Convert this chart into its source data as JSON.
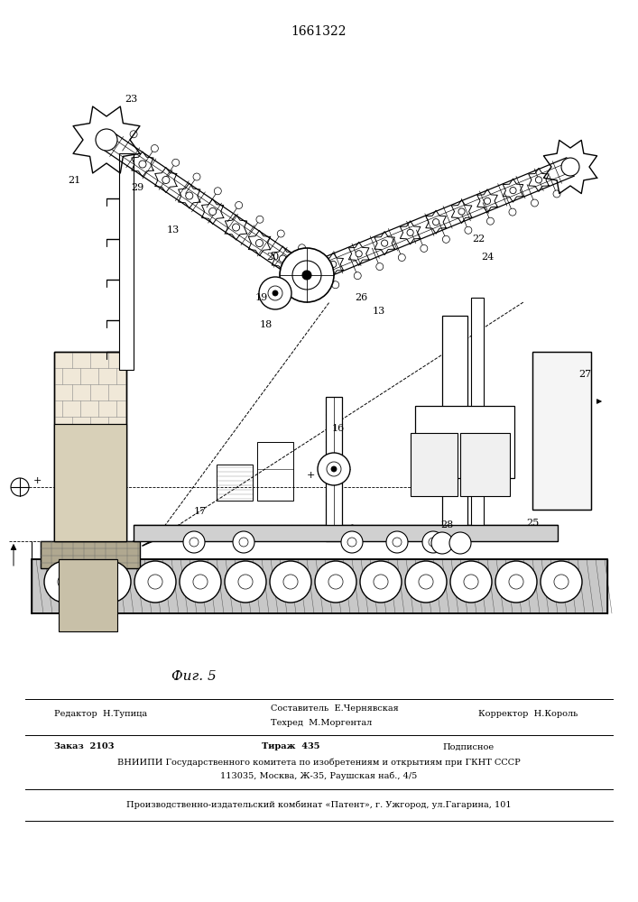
{
  "patent_number": "1661322",
  "fig_label": "Фиг. 5",
  "bg_color": "#ffffff",
  "line_color": "#000000",
  "font_color": "#000000",
  "footer_fontsize": 7.0,
  "label_fontsize": 8.0,
  "editor_line": "Редактор  Н.Тупица",
  "compiler_line": "Составитель  Е.Чернявская",
  "techred_line": "Техред  М.Моргентал",
  "corrector_line": "Корректор  Н.Король",
  "order_line": "Заказ  2103",
  "tirazh_line": "Тираж  435",
  "podpisnoe_line": "Подписное",
  "vniipи_line": "ВНИИПИ Государственного комитета по изобретениям и открытиям при ГКНТ СССР",
  "address_line": "113035, Москва, Ж-35, Раушская наб., 4/5",
  "factory_line": "Производственно-издательский комбинат «Патент», г. Ужгород, ул.Гагарина, 101"
}
